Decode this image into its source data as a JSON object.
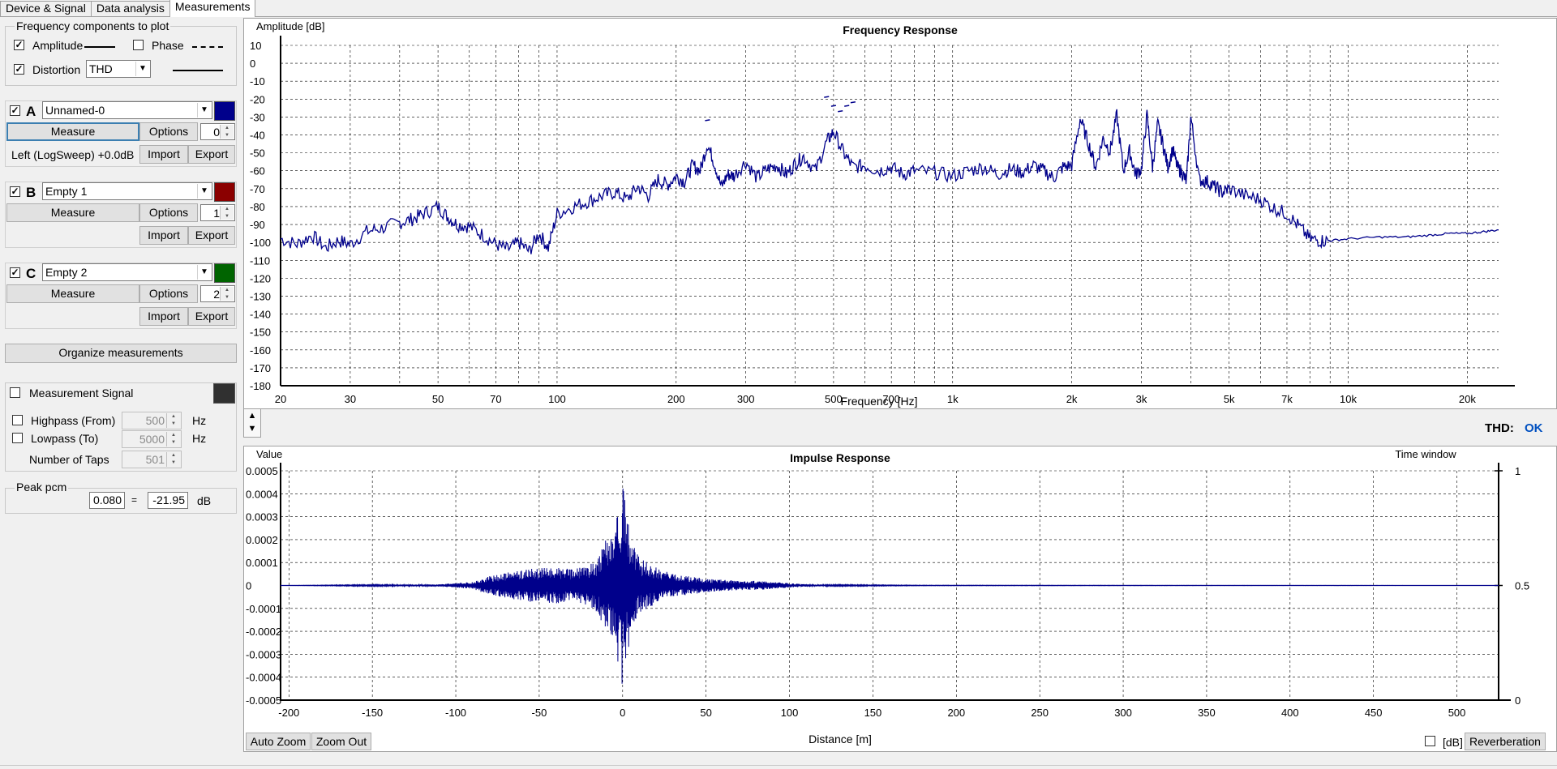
{
  "tabs": [
    "Device & Signal",
    "Data analysis",
    "Measurements"
  ],
  "freq_components": {
    "title": "Frequency components to plot",
    "amplitude_label": "Amplitude",
    "phase_label": "Phase",
    "distortion_label": "Distortion",
    "distortion_value": "THD"
  },
  "measurements": [
    {
      "letter": "A",
      "name": "Unnamed-0",
      "color": "#00008b",
      "measure": "Measure",
      "options": "Options",
      "index": "0",
      "info": "Left (LogSweep) +0.0dB",
      "import": "Import",
      "export": "Export"
    },
    {
      "letter": "B",
      "name": "Empty 1",
      "color": "#8b0000",
      "measure": "Measure",
      "options": "Options",
      "index": "1",
      "info": "",
      "import": "Import",
      "export": "Export"
    },
    {
      "letter": "C",
      "name": "Empty 2",
      "color": "#006400",
      "measure": "Measure",
      "options": "Options",
      "index": "2",
      "info": "",
      "import": "Import",
      "export": "Export"
    }
  ],
  "organize_label": "Organize measurements",
  "signal": {
    "label": "Measurement Signal",
    "swatch": "#303030",
    "highpass_label": "Highpass (From)",
    "highpass_value": "500",
    "lowpass_label": "Lowpass (To)",
    "lowpass_value": "5000",
    "taps_label": "Number of Taps",
    "taps_value": "501",
    "unit": "Hz"
  },
  "peak": {
    "title": "Peak pcm",
    "value": "0.080",
    "equals": "=",
    "db_value": "-21.95",
    "db_unit": "dB"
  },
  "thd_status": {
    "label": "THD:",
    "value": "OK",
    "color": "#0050c0"
  },
  "bottom": {
    "auto_zoom": "Auto Zoom",
    "zoom_out": "Zoom Out",
    "db_label": "[dB]",
    "reverberation": "Reverberation"
  },
  "chart_data": [
    {
      "type": "line",
      "title": "Frequency Response",
      "ylabel": "Amplitude [dB]",
      "xlabel": "Frequency [Hz]",
      "xscale": "log",
      "xlim": [
        20,
        24000
      ],
      "ylim": [
        -180,
        10
      ],
      "grid": true,
      "xticks": [
        20,
        30,
        50,
        70,
        100,
        200,
        300,
        500,
        700,
        1000,
        2000,
        3000,
        5000,
        7000,
        10000,
        20000
      ],
      "xtick_labels": [
        "20",
        "30",
        "50",
        "70",
        "100",
        "200",
        "300",
        "500",
        "700",
        "1k",
        "2k",
        "3k",
        "5k",
        "7k",
        "10k",
        "20k"
      ],
      "yticks": [
        10,
        0,
        -10,
        -20,
        -30,
        -40,
        -50,
        -60,
        -70,
        -80,
        -90,
        -100,
        -110,
        -120,
        -130,
        -140,
        -150,
        -160,
        -170,
        -180
      ],
      "series": [
        {
          "color": "#00008b",
          "x": [
            20,
            22,
            24,
            26,
            28,
            30,
            33,
            36,
            40,
            43,
            46,
            50,
            53,
            56,
            60,
            65,
            70,
            75,
            80,
            85,
            90,
            95,
            100,
            110,
            120,
            130,
            140,
            150,
            160,
            170,
            180,
            190,
            200,
            210,
            220,
            230,
            240,
            250,
            260,
            270,
            280,
            300,
            320,
            340,
            360,
            380,
            400,
            420,
            450,
            480,
            500,
            530,
            560,
            600,
            650,
            700,
            750,
            800,
            900,
            1000,
            1100,
            1200,
            1300,
            1400,
            1500,
            1600,
            1700,
            1800,
            1900,
            2000,
            2100,
            2200,
            2300,
            2400,
            2500,
            2600,
            2700,
            2800,
            2900,
            3000,
            3100,
            3200,
            3300,
            3400,
            3500,
            3600,
            3700,
            3800,
            3900,
            4000,
            4200,
            4400,
            4600,
            4800,
            5000,
            5500,
            6000,
            6500,
            7000,
            7500,
            8000,
            8500,
            9000,
            10000,
            12000,
            14000,
            16000,
            18000,
            20000,
            22000,
            24000
          ],
          "values": [
            -98,
            -101,
            -96,
            -103,
            -99,
            -101,
            -94,
            -92,
            -89,
            -87,
            -84,
            -80,
            -86,
            -90,
            -91,
            -96,
            -101,
            -104,
            -100,
            -105,
            -95,
            -103,
            -84,
            -80,
            -77,
            -74,
            -72,
            -76,
            -69,
            -74,
            -65,
            -68,
            -63,
            -66,
            -57,
            -60,
            -45,
            -56,
            -69,
            -62,
            -63,
            -55,
            -64,
            -59,
            -57,
            -62,
            -56,
            -52,
            -60,
            -44,
            -38,
            -50,
            -58,
            -57,
            -60,
            -58,
            -62,
            -60,
            -61,
            -63,
            -60,
            -58,
            -62,
            -59,
            -61,
            -57,
            -60,
            -64,
            -58,
            -57,
            -31,
            -44,
            -58,
            -42,
            -49,
            -29,
            -60,
            -49,
            -62,
            -59,
            -29,
            -58,
            -34,
            -45,
            -58,
            -48,
            -58,
            -61,
            -66,
            -30,
            -65,
            -66,
            -69,
            -72,
            -70,
            -74,
            -76,
            -81,
            -84,
            -91,
            -98,
            -99,
            -99,
            -98,
            -97,
            -97,
            -96,
            -95,
            -95,
            -94,
            -93
          ]
        }
      ],
      "distortion_dots": {
        "x": [
          240,
          480,
          500,
          520,
          540,
          560
        ],
        "values": [
          -32,
          -19,
          -24,
          -27,
          -24,
          -22
        ]
      }
    },
    {
      "type": "line",
      "title": "Impulse Response",
      "ylabel": "Value",
      "xlabel": "Distance [m]",
      "right_label": "Time window",
      "xlim": [
        -205,
        525
      ],
      "ylim": [
        -0.0005,
        0.0005
      ],
      "grid": true,
      "xticks": [
        -200,
        -150,
        -100,
        -50,
        0,
        50,
        100,
        150,
        200,
        250,
        300,
        350,
        400,
        450,
        500
      ],
      "yticks": [
        0.0005,
        0.0004,
        0.0003,
        0.0002,
        0.0001,
        0,
        -0.0001,
        -0.0002,
        -0.0003,
        -0.0004,
        -0.0005
      ],
      "ytick_labels": [
        "0.0005",
        "0.0004",
        "0.0003",
        "0.0002",
        "0.0001",
        "0",
        "-0.0001",
        "-0.0002",
        "-0.0003",
        "-0.0004",
        "-0.0005"
      ],
      "right_ticks": [
        "1",
        "0.5",
        "0"
      ],
      "series": [
        {
          "color": "#00008b",
          "envelope_x": [
            -205,
            -110,
            -100,
            -90,
            -80,
            -60,
            -40,
            -30,
            -20,
            -15,
            -10,
            -5,
            0,
            5,
            10,
            20,
            30,
            40,
            50,
            60,
            70,
            80,
            90,
            100,
            110,
            130,
            150,
            180,
            525
          ],
          "envelope_peak": [
            0,
            5e-06,
            1e-05,
            1.5e-05,
            4e-05,
            7e-05,
            8e-05,
            7e-05,
            9e-05,
            0.00012,
            0.0002,
            0.00025,
            0.00045,
            0.0002,
            0.00012,
            8e-05,
            5e-05,
            4e-05,
            3e-05,
            2.5e-05,
            2e-05,
            2e-05,
            1.5e-05,
            1e-05,
            5e-06,
            3e-06,
            2e-06,
            1e-06,
            0
          ]
        }
      ],
      "time_window_line": 0.5
    }
  ]
}
